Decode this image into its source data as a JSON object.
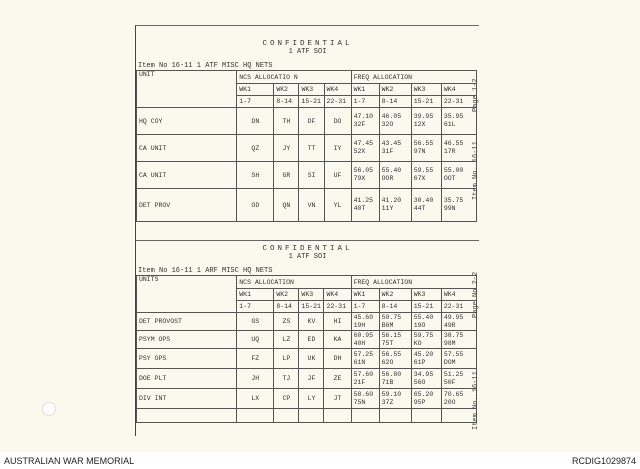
{
  "footer": {
    "left": "AUSTRALIAN WAR MEMORIAL",
    "right": "RCDIG1029874"
  },
  "sections": [
    {
      "title": "CONFIDENTIAL",
      "subtitle": "1 ATF SOI",
      "item": "Item No 16-11   1 ATF MISC HQ NETS",
      "side_page": "Page 1-2",
      "side_item": "Item No. 16-11",
      "headers": {
        "unit": "UNIT",
        "ncs": "NCS ALLOCATIO N",
        "freq": "FREQ ALLOCATION"
      },
      "weeks": [
        "WK1",
        "WK2",
        "WK3",
        "WK4"
      ],
      "days": [
        "1-7",
        "8-14",
        "15-21",
        "22-31"
      ],
      "rows": [
        {
          "unit": "HQ COY",
          "ncs": [
            "DN",
            "TH",
            "DF",
            "DO"
          ],
          "freq": [
            [
              "47.10",
              "32F"
            ],
            [
              "46.05",
              "32O"
            ],
            [
              "39.95",
              "12X"
            ],
            [
              "35.95",
              "61L"
            ]
          ]
        },
        {
          "unit": "CA UNIT",
          "ncs": [
            "QZ",
            "JY",
            "TT",
            "IY"
          ],
          "freq": [
            [
              "47.45",
              "52X"
            ],
            [
              "43.45",
              "31F"
            ],
            [
              "56.55",
              "97N"
            ],
            [
              "46.55",
              "17R"
            ]
          ]
        },
        {
          "unit": "CA UNIT",
          "ncs": [
            "SH",
            "GR",
            "SI",
            "UF"
          ],
          "freq": [
            [
              "56.05",
              "79X"
            ],
            [
              "55.40",
              "OOR"
            ],
            [
              "59.55",
              "67X"
            ],
            [
              "55.00",
              "OOT"
            ]
          ]
        },
        {
          "unit": "DET PROV",
          "ncs": [
            "OD",
            "QN",
            "VN",
            "YL"
          ],
          "freq": [
            [
              "41.25",
              "40T"
            ],
            [
              "41.20",
              "11Y"
            ],
            [
              "30.40",
              "44T"
            ],
            [
              "35.75",
              "99N"
            ]
          ]
        }
      ]
    },
    {
      "title": "CONFIDENTIAL",
      "subtitle": "1 ATF SOI",
      "item": "Item No 16-11   1 ARF MISC HQ NETS",
      "side_page": "Page No 2-2",
      "side_item": "Item No. 16-11",
      "headers": {
        "unit": "UNITS",
        "ncs": "NCS ALLOCATION",
        "freq": "FREQ ALLOCATION"
      },
      "weeks": [
        "WK1",
        "WK2",
        "WK3",
        "WK4"
      ],
      "days": [
        "1-7",
        "8-14",
        "15-21",
        "22-31"
      ],
      "rows": [
        {
          "unit": "DET PROVOST",
          "ncs": [
            "GS",
            "ZS",
            "KV",
            "HI"
          ],
          "freq": [
            [
              "45.60",
              "19H"
            ],
            [
              "50.75",
              "B6M"
            ],
            [
              "55.40",
              "19O"
            ],
            [
              "49.95",
              "49R"
            ]
          ]
        },
        {
          "unit": "PSYM OPS",
          "ncs": [
            "UQ",
            "LZ",
            "ED",
            "KA"
          ],
          "freq": [
            [
              "60.95",
              "40H"
            ],
            [
              "56.15",
              "75T"
            ],
            [
              "59.75",
              "KO"
            ],
            [
              "38.75",
              "98M"
            ]
          ]
        },
        {
          "unit": "PSY OPS",
          "ncs": [
            "FZ",
            "LP",
            "UK",
            "DH"
          ],
          "freq": [
            [
              "57.25",
              "61N"
            ],
            [
              "56.55",
              "62O"
            ],
            [
              "45.20",
              "61P"
            ],
            [
              "57.55",
              "DOM"
            ]
          ]
        },
        {
          "unit": "DOE PLT",
          "ncs": [
            "JH",
            "TJ",
            "JF",
            "ZE"
          ],
          "freq": [
            [
              "57.60",
              "21F"
            ],
            [
              "56.80",
              "71B"
            ],
            [
              "34.95",
              "56O"
            ],
            [
              "51.25",
              "50F"
            ]
          ]
        },
        {
          "unit": "DIV INT",
          "ncs": [
            "LX",
            "CP",
            "LY",
            "JT"
          ],
          "freq": [
            [
              "58.60",
              "75N"
            ],
            [
              "59.10",
              "37Z"
            ],
            [
              "65.20",
              "95P"
            ],
            [
              "70.65",
              "20O"
            ]
          ]
        },
        {
          "unit": "",
          "ncs": [
            "",
            "",
            "",
            ""
          ],
          "freq": [
            [
              "",
              ""
            ],
            [
              "",
              ""
            ],
            [
              "",
              ""
            ],
            [
              "",
              ""
            ]
          ]
        }
      ]
    }
  ]
}
